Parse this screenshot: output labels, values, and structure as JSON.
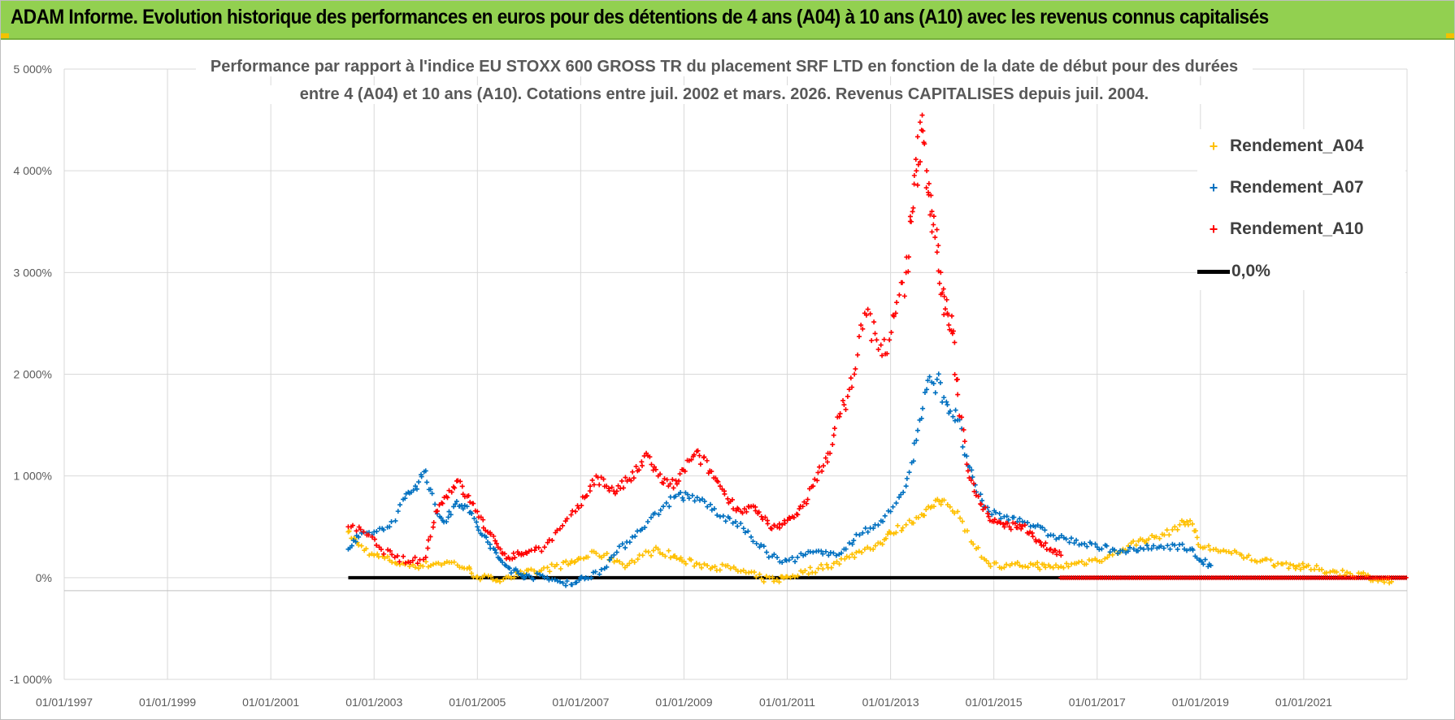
{
  "header": {
    "title": "ADAM Informe. Evolution historique des performances en euros pour des détentions de 4 ans (A04) à 10 ans (A10) avec les revenus connus capitalisés"
  },
  "colors": {
    "header_bg": "#92d050",
    "a04": "#ffc000",
    "a07": "#0070c0",
    "a10": "#ff0000",
    "zero": "#000000"
  },
  "chart_data": {
    "type": "scatter",
    "title_lines": [
      "Performance par rapport à l'indice EU STOXX 600 GROSS TR  du placement SRF LTD en fonction de la date de début pour des durées",
      "entre 4 (A04) et 10 ans (A10). Cotations entre juil. 2002 et mars. 2026. Revenus CAPITALISES depuis juil. 2004."
    ],
    "xlabel": "",
    "ylabel": "",
    "xlim": [
      1997.0,
      2023.0
    ],
    "ylim": [
      -1000,
      5000
    ],
    "x_ticks": [
      1997,
      1999,
      2001,
      2003,
      2005,
      2007,
      2009,
      2011,
      2013,
      2015,
      2017,
      2019,
      2021
    ],
    "x_tick_labels": [
      "01/01/1997",
      "01/01/1999",
      "01/01/2001",
      "01/01/2003",
      "01/01/2005",
      "01/01/2007",
      "01/01/2009",
      "01/01/2011",
      "01/01/2013",
      "01/01/2015",
      "01/01/2017",
      "01/01/2019",
      "01/01/2021"
    ],
    "y_ticks": [
      -1000,
      0,
      1000,
      2000,
      3000,
      4000,
      5000
    ],
    "y_tick_labels": [
      "-1 000%",
      "0%",
      "1 000%",
      "2 000%",
      "3 000%",
      "4 000%",
      "5 000%"
    ],
    "grid": true,
    "legend_position": "top-right",
    "series": [
      {
        "name": "Rendement_A04",
        "color": "#ffc000",
        "x": [
          2002.5,
          2002.7,
          2003.0,
          2003.3,
          2003.6,
          2003.9,
          2004.2,
          2004.5,
          2004.8,
          2005.0,
          2005.3,
          2005.6,
          2005.9,
          2006.2,
          2006.5,
          2006.8,
          2007.0,
          2007.3,
          2007.6,
          2007.9,
          2008.2,
          2008.5,
          2008.8,
          2009.0,
          2009.3,
          2009.6,
          2009.9,
          2010.2,
          2010.5,
          2010.8,
          2011.0,
          2011.3,
          2011.6,
          2011.9,
          2012.2,
          2012.5,
          2012.8,
          2013.0,
          2013.3,
          2013.6,
          2013.8,
          2014.0,
          2014.3,
          2014.6,
          2014.9,
          2015.2,
          2015.5,
          2015.8,
          2016.0,
          2016.3,
          2016.6,
          2016.9,
          2017.2,
          2017.5,
          2017.8,
          2018.0,
          2018.3,
          2018.6,
          2018.8,
          2019.0,
          2019.3,
          2019.6,
          2019.9,
          2020.2,
          2020.5,
          2020.8,
          2021.0,
          2021.3,
          2021.6,
          2021.9,
          2022.2,
          2022.5,
          2022.7
        ],
        "y": [
          450,
          320,
          220,
          170,
          130,
          120,
          140,
          150,
          90,
          10,
          -20,
          10,
          40,
          60,
          110,
          140,
          190,
          240,
          190,
          120,
          220,
          280,
          210,
          160,
          130,
          110,
          90,
          50,
          -10,
          -20,
          10,
          50,
          90,
          140,
          200,
          280,
          340,
          440,
          520,
          620,
          700,
          760,
          650,
          330,
          140,
          100,
          120,
          130,
          100,
          110,
          140,
          170,
          200,
          280,
          360,
          380,
          420,
          520,
          560,
          300,
          280,
          240,
          200,
          170,
          140,
          120,
          100,
          80,
          60,
          40,
          20,
          -20,
          -40
        ]
      },
      {
        "name": "Rendement_A07",
        "color": "#0070c0",
        "x": [
          2002.5,
          2002.7,
          2003.0,
          2003.3,
          2003.6,
          2003.8,
          2004.0,
          2004.2,
          2004.4,
          2004.6,
          2004.8,
          2005.0,
          2005.2,
          2005.4,
          2005.6,
          2005.8,
          2006.0,
          2006.3,
          2006.6,
          2006.9,
          2007.1,
          2007.4,
          2007.7,
          2008.0,
          2008.3,
          2008.6,
          2008.9,
          2009.1,
          2009.4,
          2009.7,
          2010.0,
          2010.3,
          2010.6,
          2010.9,
          2011.2,
          2011.5,
          2011.8,
          2012.1,
          2012.4,
          2012.7,
          2013.0,
          2013.3,
          2013.5,
          2013.7,
          2013.9,
          2014.1,
          2014.3,
          2014.5,
          2014.7,
          2014.9,
          2015.2,
          2015.5,
          2015.8,
          2016.1,
          2016.4,
          2016.7,
          2017.0,
          2017.3,
          2017.6,
          2017.9,
          2018.2,
          2018.5,
          2018.8,
          2019.0,
          2019.2
        ],
        "y": [
          280,
          400,
          450,
          500,
          780,
          900,
          1050,
          650,
          550,
          750,
          700,
          500,
          350,
          200,
          100,
          40,
          20,
          0,
          -40,
          -50,
          0,
          80,
          250,
          400,
          550,
          700,
          820,
          780,
          750,
          600,
          550,
          400,
          250,
          150,
          200,
          250,
          220,
          280,
          420,
          520,
          650,
          900,
          1350,
          1850,
          1950,
          1700,
          1550,
          1100,
          800,
          650,
          600,
          580,
          500,
          420,
          380,
          330,
          300,
          280,
          260,
          280,
          300,
          320,
          280,
          170,
          120
        ]
      },
      {
        "name": "Rendement_A10",
        "color": "#ff0000",
        "x": [
          2002.5,
          2002.8,
          2003.1,
          2003.4,
          2003.7,
          2004.0,
          2004.2,
          2004.4,
          2004.6,
          2004.8,
          2005.0,
          2005.2,
          2005.4,
          2005.6,
          2005.8,
          2006.0,
          2006.3,
          2006.6,
          2006.9,
          2007.1,
          2007.3,
          2007.5,
          2007.7,
          2007.9,
          2008.1,
          2008.3,
          2008.5,
          2008.7,
          2008.9,
          2009.1,
          2009.3,
          2009.5,
          2009.7,
          2009.9,
          2010.1,
          2010.3,
          2010.5,
          2010.7,
          2010.9,
          2011.1,
          2011.3,
          2011.5,
          2011.7,
          2011.9,
          2012.1,
          2012.3,
          2012.5,
          2012.7,
          2012.9,
          2013.1,
          2013.3,
          2013.4,
          2013.5,
          2013.6,
          2013.7,
          2013.8,
          2013.9,
          2014.0,
          2014.1,
          2014.2,
          2014.3,
          2014.5,
          2014.7,
          2014.9,
          2015.1,
          2015.3,
          2015.5,
          2015.7,
          2015.9,
          2016.1,
          2016.3
        ],
        "y": [
          500,
          450,
          300,
          200,
          150,
          200,
          650,
          800,
          950,
          800,
          650,
          450,
          300,
          200,
          230,
          260,
          300,
          480,
          650,
          800,
          1000,
          900,
          850,
          950,
          1050,
          1200,
          1000,
          900,
          950,
          1150,
          1200,
          1050,
          900,
          750,
          650,
          700,
          600,
          480,
          520,
          600,
          700,
          900,
          1100,
          1400,
          1700,
          2000,
          2600,
          2400,
          2200,
          2600,
          3000,
          3500,
          4000,
          4400,
          4000,
          3600,
          3200,
          2800,
          2600,
          2400,
          1800,
          1050,
          800,
          600,
          550,
          500,
          520,
          450,
          350,
          280,
          220
        ]
      },
      {
        "name": "0,0%",
        "color": "#000000",
        "x": [
          2002.5,
          2023.0
        ],
        "y": [
          0,
          0
        ]
      }
    ],
    "a10_zero_band": {
      "x_start": 2016.3,
      "x_end": 2023.0,
      "y": 0
    }
  }
}
